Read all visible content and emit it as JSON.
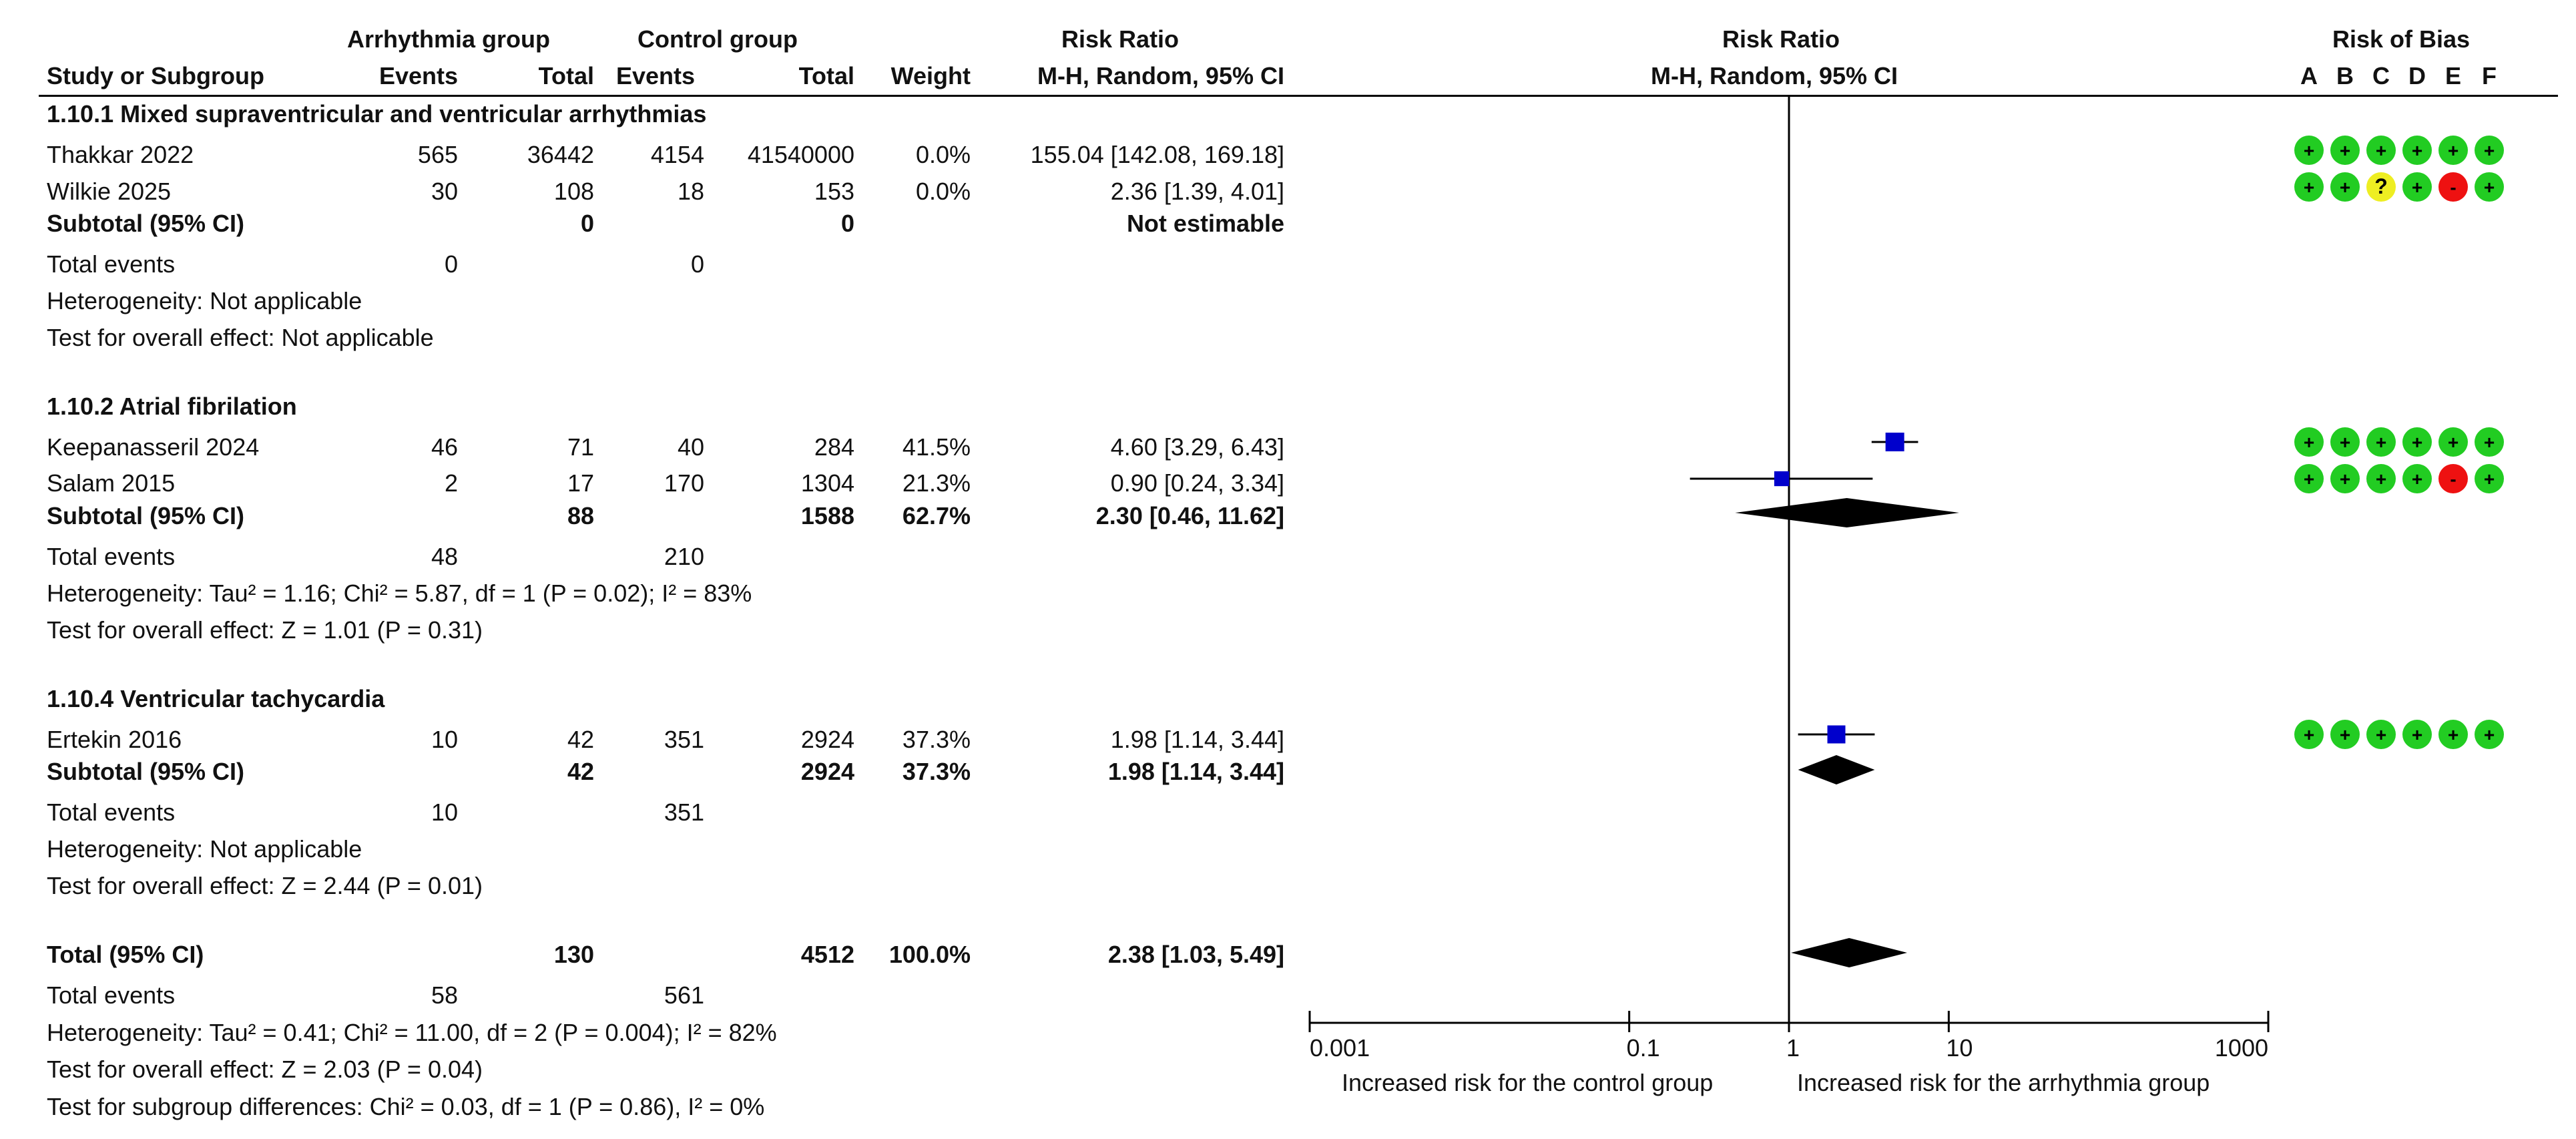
{
  "header": {
    "arrhythmia_group": "Arrhythmia group",
    "control_group": "Control group",
    "risk_ratio": "Risk Ratio",
    "risk_ratio_plot": "Risk Ratio",
    "risk_of_bias": "Risk of Bias",
    "study_or_subgroup": "Study or Subgroup",
    "events_a": "Events",
    "total_a": "Total",
    "events_c": "Events",
    "total_c": "Total",
    "weight": "Weight",
    "method": "M-H, Random, 95% CI",
    "method_plot": "M-H, Random, 95% CI",
    "bias_letters": [
      "A",
      "B",
      "C",
      "D",
      "E",
      "F"
    ]
  },
  "subgroups": [
    {
      "title": "1.10.1 Mixed supraventricular and ventricular arrhythmias",
      "studies": [
        {
          "name": "Thakkar 2022",
          "ev_a": "565",
          "tot_a": "36442",
          "ev_c": "4154",
          "tot_c": "41540000",
          "weight": "0.0%",
          "ci_text": "155.04 [142.08, 169.18]"
        },
        {
          "name": "Wilkie 2025",
          "ev_a": "30",
          "tot_a": "108",
          "ev_c": "18",
          "tot_c": "153",
          "weight": "0.0%",
          "ci_text": "2.36 [1.39, 4.01]"
        }
      ],
      "subtotal": {
        "label": "Subtotal (95% CI)",
        "tot_a": "0",
        "tot_c": "0",
        "weight": "",
        "ci_text": "Not estimable"
      },
      "total_events": {
        "label": "Total events",
        "ev_a": "0",
        "ev_c": "0"
      },
      "heterogeneity": "Heterogeneity: Not applicable",
      "overall": "Test for overall effect: Not applicable"
    },
    {
      "title": "1.10.2 Atrial fibrilation",
      "studies": [
        {
          "name": "Keepanasseril 2024",
          "ev_a": "46",
          "tot_a": "71",
          "ev_c": "40",
          "tot_c": "284",
          "weight": "41.5%",
          "ci_text": "4.60 [3.29, 6.43]"
        },
        {
          "name": "Salam 2015",
          "ev_a": "2",
          "tot_a": "17",
          "ev_c": "170",
          "tot_c": "1304",
          "weight": "21.3%",
          "ci_text": "0.90 [0.24, 3.34]"
        }
      ],
      "subtotal": {
        "label": "Subtotal (95% CI)",
        "tot_a": "88",
        "tot_c": "1588",
        "weight": "62.7%",
        "ci_text": "2.30 [0.46, 11.62]"
      },
      "total_events": {
        "label": "Total events",
        "ev_a": "48",
        "ev_c": "210"
      },
      "heterogeneity": "Heterogeneity: Tau² = 1.16; Chi² = 5.87, df = 1 (P = 0.02); I² = 83%",
      "overall": "Test for overall effect: Z = 1.01 (P = 0.31)"
    },
    {
      "title": "1.10.4 Ventricular tachycardia",
      "studies": [
        {
          "name": "Ertekin 2016",
          "ev_a": "10",
          "tot_a": "42",
          "ev_c": "351",
          "tot_c": "2924",
          "weight": "37.3%",
          "ci_text": "1.98 [1.14, 3.44]"
        }
      ],
      "subtotal": {
        "label": "Subtotal (95% CI)",
        "tot_a": "42",
        "tot_c": "2924",
        "weight": "37.3%",
        "ci_text": "1.98 [1.14, 3.44]"
      },
      "total_events": {
        "label": "Total events",
        "ev_a": "10",
        "ev_c": "351"
      },
      "heterogeneity": "Heterogeneity: Not applicable",
      "overall": "Test for overall effect: Z = 2.44 (P = 0.01)"
    }
  ],
  "total": {
    "label": "Total (95% CI)",
    "tot_a": "130",
    "tot_c": "4512",
    "weight": "100.0%",
    "ci_text": "2.38 [1.03, 5.49]",
    "events_label": "Total events",
    "ev_a": "58",
    "ev_c": "561",
    "heterogeneity": "Heterogeneity: Tau² = 0.41; Chi² = 11.00, df = 2 (P = 0.004); I² = 82%",
    "overall": "Test for overall effect: Z = 2.03 (P = 0.04)",
    "subgroup_diff": "Test for subgroup differences: Chi² = 0.03, df = 1 (P = 0.86), I² = 0%"
  },
  "colors": {
    "plus": "#22cc22",
    "unclear": "#eeee22",
    "high": "#ee1111",
    "square": "#0000cc",
    "diamond": "#000000"
  },
  "chart_data": {
    "type": "forest",
    "scale": "log",
    "xlim": [
      0.001,
      1000
    ],
    "ticks": [
      {
        "value": 0.001,
        "label": "0.001"
      },
      {
        "value": 0.1,
        "label": "0.1"
      },
      {
        "value": 1,
        "label": "1"
      },
      {
        "value": 10,
        "label": "10"
      },
      {
        "value": 1000,
        "label": "1000"
      }
    ],
    "null_value": 1,
    "left_label": "Increased risk for the control group",
    "right_label": "Increased risk for the arrhythmia group",
    "points": [
      {
        "study": "Keepanasseril 2024",
        "rr": 4.6,
        "lo": 3.29,
        "hi": 6.43,
        "weight": 41.5
      },
      {
        "study": "Salam 2015",
        "rr": 0.9,
        "lo": 0.24,
        "hi": 3.34,
        "weight": 21.3
      },
      {
        "study": "Ertekin 2016",
        "rr": 1.98,
        "lo": 1.14,
        "hi": 3.44,
        "weight": 37.3
      }
    ],
    "diamonds": [
      {
        "label": "Subtotal 1.10.2",
        "rr": 2.3,
        "lo": 0.46,
        "hi": 11.62
      },
      {
        "label": "Subtotal 1.10.4",
        "rr": 1.98,
        "lo": 1.14,
        "hi": 3.44
      },
      {
        "label": "Total",
        "rr": 2.38,
        "lo": 1.03,
        "hi": 5.49
      }
    ],
    "risk_of_bias": [
      {
        "study": "Thakkar 2022",
        "ratings": [
          "+",
          "+",
          "+",
          "+",
          "+",
          "+"
        ]
      },
      {
        "study": "Wilkie 2025",
        "ratings": [
          "+",
          "+",
          "?",
          "+",
          "-",
          "+"
        ]
      },
      {
        "study": "Keepanasseril 2024",
        "ratings": [
          "+",
          "+",
          "+",
          "+",
          "+",
          "+"
        ]
      },
      {
        "study": "Salam 2015",
        "ratings": [
          "+",
          "+",
          "+",
          "+",
          "-",
          "+"
        ]
      },
      {
        "study": "Ertekin 2016",
        "ratings": [
          "+",
          "+",
          "+",
          "+",
          "+",
          "+"
        ]
      }
    ]
  }
}
